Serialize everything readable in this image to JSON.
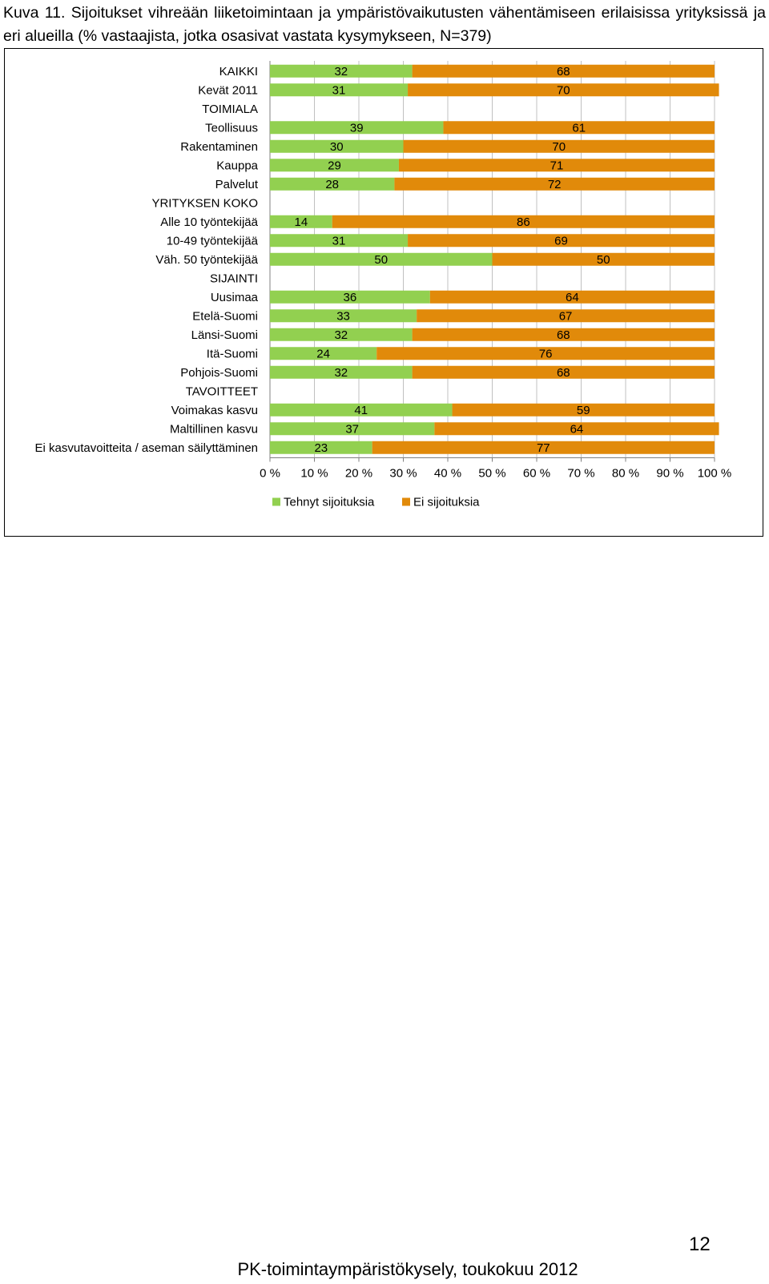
{
  "document": {
    "figure_caption": "Kuva 11. Sijoitukset vihreään liiketoimintaan ja ympäristövaikutusten vähentämiseen erilaisissa yrityksissä ja eri alueilla (% vastaajista, jotka osasivat vastata kysymykseen, N=379)",
    "page_number": "12",
    "footer": "PK-toimintaympäristökysely, toukokuu 2012"
  },
  "colors": {
    "tehnyt": "#92d050",
    "ei": "#e18a0a",
    "grid": "#c0c0c0",
    "axis": "#808080"
  },
  "chart_data": {
    "type": "bar",
    "orientation": "horizontal",
    "stacked": true,
    "percent_stacked": true,
    "categories": [
      "KAIKKI",
      "Kevät 2011",
      "TOIMIALA",
      "Teollisuus",
      "Rakentaminen",
      "Kauppa",
      "Palvelut",
      "YRITYKSEN KOKO",
      "Alle 10 työntekijää",
      "10-49 työntekijää",
      "Väh. 50 työntekijää",
      "SIJAINTI",
      "Uusimaa",
      "Etelä-Suomi",
      "Länsi-Suomi",
      "Itä-Suomi",
      "Pohjois-Suomi",
      "TAVOITTEET",
      "Voimakas kasvu",
      "Maltillinen kasvu",
      "Ei kasvutavoitteita / aseman säilyttäminen"
    ],
    "series": [
      {
        "name": "Tehnyt sijoituksia",
        "color": "#92d050",
        "values": [
          32,
          31,
          null,
          39,
          30,
          29,
          28,
          null,
          14,
          31,
          50,
          null,
          36,
          33,
          32,
          24,
          32,
          null,
          41,
          37,
          23
        ]
      },
      {
        "name": "Ei sijoituksia",
        "color": "#e18a0a",
        "values": [
          68,
          70,
          null,
          61,
          70,
          71,
          72,
          null,
          86,
          69,
          50,
          null,
          64,
          67,
          68,
          76,
          68,
          null,
          59,
          64,
          77
        ]
      }
    ],
    "x_ticks": [
      "0 %",
      "10 %",
      "20 %",
      "30 %",
      "40 %",
      "50 %",
      "60 %",
      "70 %",
      "80 %",
      "90 %",
      "100 %"
    ],
    "xlim": [
      0,
      100
    ],
    "grid": true,
    "legend_position": "bottom",
    "data_labels": true
  }
}
